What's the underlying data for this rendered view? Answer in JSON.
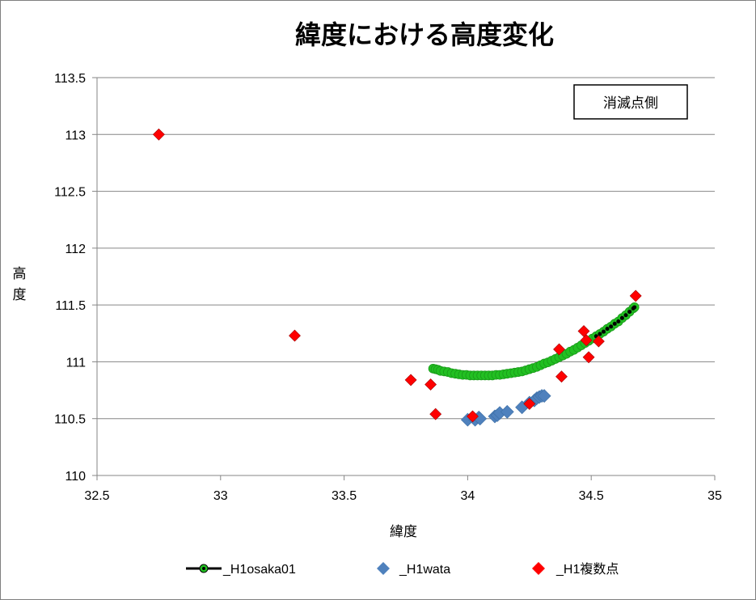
{
  "chart_data": {
    "type": "scatter",
    "title": "緯度における高度変化",
    "xlabel": "緯度",
    "ylabel": "高度",
    "xlim": [
      32.5,
      35
    ],
    "ylim": [
      110,
      113.5
    ],
    "x_ticks": [
      "32.5",
      "33",
      "33.5",
      "34",
      "34.5",
      "35"
    ],
    "y_ticks": [
      "110",
      "110.5",
      "111",
      "111.5",
      "112",
      "112.5",
      "113",
      "113.5"
    ],
    "grid": "horizontal",
    "legend_position": "bottom",
    "annotation": "消滅点側",
    "colors": {
      "osaka_fill": "#22c022",
      "osaka_core": "#000000",
      "osaka_line": "#000000",
      "wata": "#4f81bd",
      "fukusu": "#ff0000",
      "grid": "#868686",
      "axis": "#868686"
    },
    "series": [
      {
        "name": "_H1osaka01",
        "marker": "circle-with-line",
        "points": [
          [
            33.86,
            110.94
          ],
          [
            33.87,
            110.935
          ],
          [
            33.88,
            110.93
          ],
          [
            33.89,
            110.92
          ],
          [
            33.905,
            110.915
          ],
          [
            33.92,
            110.91
          ],
          [
            33.935,
            110.9
          ],
          [
            33.95,
            110.895
          ],
          [
            33.965,
            110.89
          ],
          [
            33.98,
            110.885
          ],
          [
            33.995,
            110.885
          ],
          [
            34.01,
            110.88
          ],
          [
            34.025,
            110.88
          ],
          [
            34.04,
            110.88
          ],
          [
            34.055,
            110.88
          ],
          [
            34.07,
            110.88
          ],
          [
            34.085,
            110.88
          ],
          [
            34.1,
            110.88
          ],
          [
            34.115,
            110.885
          ],
          [
            34.13,
            110.885
          ],
          [
            34.145,
            110.89
          ],
          [
            34.16,
            110.895
          ],
          [
            34.175,
            110.9
          ],
          [
            34.19,
            110.905
          ],
          [
            34.205,
            110.91
          ],
          [
            34.22,
            110.915
          ],
          [
            34.235,
            110.925
          ],
          [
            34.25,
            110.935
          ],
          [
            34.265,
            110.945
          ],
          [
            34.28,
            110.955
          ],
          [
            34.295,
            110.97
          ],
          [
            34.31,
            110.985
          ],
          [
            34.325,
            110.995
          ],
          [
            34.34,
            111.01
          ],
          [
            34.355,
            111.025
          ],
          [
            34.37,
            111.04
          ],
          [
            34.385,
            111.055
          ],
          [
            34.4,
            111.07
          ],
          [
            34.415,
            111.09
          ],
          [
            34.43,
            111.105
          ],
          [
            34.445,
            111.125
          ],
          [
            34.46,
            111.145
          ],
          [
            34.475,
            111.165
          ],
          [
            34.49,
            111.185
          ],
          [
            34.505,
            111.205
          ],
          [
            34.52,
            111.225
          ],
          [
            34.535,
            111.245
          ],
          [
            34.55,
            111.265
          ],
          [
            34.565,
            111.29
          ],
          [
            34.58,
            111.31
          ],
          [
            34.595,
            111.335
          ],
          [
            34.61,
            111.355
          ],
          [
            34.625,
            111.385
          ],
          [
            34.64,
            111.41
          ],
          [
            34.655,
            111.44
          ],
          [
            34.67,
            111.47
          ],
          [
            34.675,
            111.48
          ]
        ]
      },
      {
        "name": "_H1wata",
        "marker": "diamond",
        "points": [
          [
            34.0,
            110.49
          ],
          [
            34.03,
            110.49
          ],
          [
            34.045,
            110.51
          ],
          [
            34.05,
            110.5
          ],
          [
            34.11,
            110.52
          ],
          [
            34.12,
            110.53
          ],
          [
            34.13,
            110.55
          ],
          [
            34.16,
            110.56
          ],
          [
            34.22,
            110.6
          ],
          [
            34.25,
            110.64
          ],
          [
            34.27,
            110.66
          ],
          [
            34.28,
            110.68
          ],
          [
            34.29,
            110.69
          ],
          [
            34.3,
            110.7
          ],
          [
            34.31,
            110.7
          ]
        ]
      },
      {
        "name": "_H1複数点",
        "marker": "diamond",
        "points": [
          [
            32.75,
            113.0
          ],
          [
            33.3,
            111.23
          ],
          [
            33.77,
            110.84
          ],
          [
            33.85,
            110.8
          ],
          [
            33.87,
            110.54
          ],
          [
            34.02,
            110.52
          ],
          [
            34.25,
            110.63
          ],
          [
            34.37,
            111.11
          ],
          [
            34.38,
            110.87
          ],
          [
            34.47,
            111.27
          ],
          [
            34.48,
            111.19
          ],
          [
            34.49,
            111.04
          ],
          [
            34.53,
            111.18
          ],
          [
            34.68,
            111.58
          ]
        ]
      }
    ]
  }
}
